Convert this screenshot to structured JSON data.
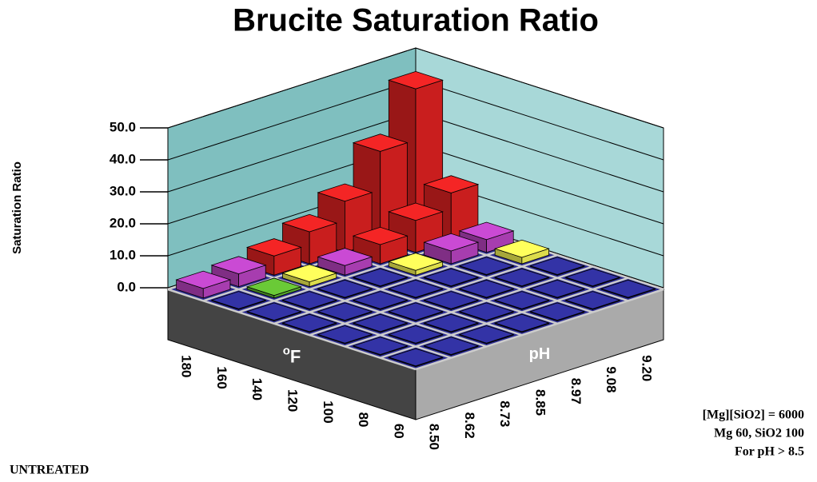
{
  "chart_data": {
    "type": "bar3d",
    "title": "Brucite Saturation Ratio",
    "y_label": "Saturation Ratio",
    "x_label_sup": "o",
    "x_label": "F",
    "z_label": "pH",
    "x_categories": [
      "180",
      "160",
      "140",
      "120",
      "100",
      "80",
      "60"
    ],
    "z_categories": [
      "8.50",
      "8.62",
      "8.73",
      "8.85",
      "8.97",
      "9.08",
      "9.20"
    ],
    "values": [
      [
        3,
        4,
        6,
        10,
        16,
        28,
        44
      ],
      [
        0.2,
        0.8,
        1.5,
        3,
        6,
        10,
        15
      ],
      [
        0.2,
        0.2,
        0.2,
        0.2,
        1.5,
        4,
        4
      ],
      [
        0.2,
        0.2,
        0.2,
        0.2,
        0.2,
        0.2,
        2
      ],
      [
        0.2,
        0.2,
        0.2,
        0.2,
        0.2,
        0.2,
        0.2
      ],
      [
        0.2,
        0.2,
        0.2,
        0.2,
        0.2,
        0.2,
        0.2
      ],
      [
        0.2,
        0.2,
        0.2,
        0.2,
        0.2,
        0.2,
        0.2
      ]
    ],
    "colors": [
      [
        "#b040b8",
        "#b040b8",
        "#d42020",
        "#d42020",
        "#d42020",
        "#d42020",
        "#d42020"
      ],
      [
        "#2c2c90",
        "#5cb030",
        "#e8e850",
        "#b040b8",
        "#d42020",
        "#d42020",
        "#d42020"
      ],
      [
        "#2c2c90",
        "#2c2c90",
        "#2c2c90",
        "#2c2c90",
        "#e8e850",
        "#b040b8",
        "#b040b8"
      ],
      [
        "#2c2c90",
        "#2c2c90",
        "#2c2c90",
        "#2c2c90",
        "#2c2c90",
        "#2c2c90",
        "#e8e850"
      ],
      [
        "#2c2c90",
        "#2c2c90",
        "#2c2c90",
        "#2c2c90",
        "#2c2c90",
        "#2c2c90",
        "#2c2c90"
      ],
      [
        "#2c2c90",
        "#2c2c90",
        "#2c2c90",
        "#2c2c90",
        "#2c2c90",
        "#2c2c90",
        "#2c2c90"
      ],
      [
        "#2c2c90",
        "#2c2c90",
        "#2c2c90",
        "#2c2c90",
        "#2c2c90",
        "#2c2c90",
        "#2c2c90"
      ]
    ],
    "ylim": [
      0,
      50
    ],
    "yticks": [
      {
        "value": 0,
        "label": "0.0"
      },
      {
        "value": 10,
        "label": "10.0"
      },
      {
        "value": 20,
        "label": "20.0"
      },
      {
        "value": 30,
        "label": "30.0"
      },
      {
        "value": 40,
        "label": "40.0"
      },
      {
        "value": 50,
        "label": "50.0"
      }
    ],
    "grid": true,
    "annotations": [
      "[Mg][SiO2] = 6000",
      "Mg 60,  SiO2 100",
      "For pH  > 8.5"
    ],
    "footer": "UNTREATED"
  }
}
